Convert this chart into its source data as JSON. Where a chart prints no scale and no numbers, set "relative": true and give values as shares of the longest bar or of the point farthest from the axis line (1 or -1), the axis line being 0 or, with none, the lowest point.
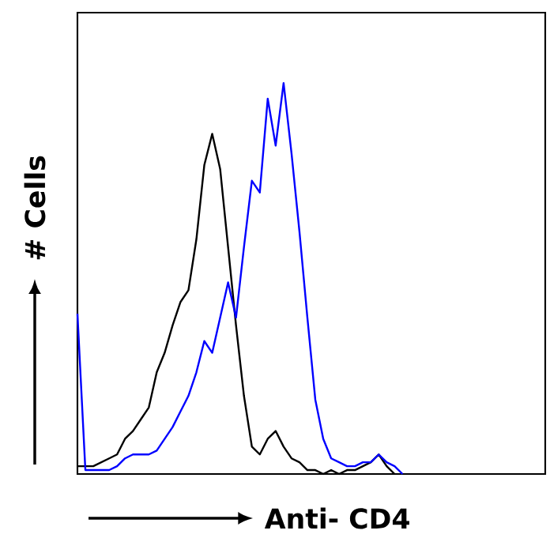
{
  "chart_data": {
    "type": "line",
    "relative": true,
    "xlabel": "Anti- CD4",
    "ylabel": "# Cells",
    "categories": [
      null,
      null,
      null,
      null,
      null,
      null,
      null,
      null,
      null,
      null,
      null,
      null,
      null,
      null,
      null,
      null,
      null,
      null,
      null,
      null,
      null,
      null,
      null,
      null,
      null,
      null,
      null,
      null,
      null,
      null,
      null,
      null,
      null,
      null,
      null,
      null,
      null,
      null,
      null,
      null,
      null,
      null,
      null,
      null,
      null,
      null,
      null,
      null,
      null,
      null,
      null,
      null,
      null,
      null,
      null,
      null,
      null,
      null,
      null,
      null
    ],
    "series": [
      {
        "color": "#000000",
        "values": [
          0.02,
          0.02,
          0.02,
          0.03,
          0.04,
          0.05,
          0.09,
          0.11,
          0.14,
          0.17,
          0.26,
          0.31,
          0.38,
          0.44,
          0.47,
          0.6,
          0.79,
          0.87,
          0.78,
          0.58,
          0.38,
          0.2,
          0.07,
          0.05,
          0.09,
          0.11,
          0.07,
          0.04,
          0.03,
          0.01,
          0.01,
          0.0,
          0.01,
          0.0,
          0.01,
          0.01,
          0.02,
          0.03,
          0.05,
          0.02,
          0.0,
          null,
          null,
          null,
          null,
          null,
          null,
          null,
          null,
          null,
          null,
          null,
          null,
          null,
          null,
          null,
          null,
          null,
          null,
          null
        ]
      },
      {
        "color": "#0000ff",
        "values": [
          0.41,
          0.01,
          0.01,
          0.01,
          0.01,
          0.02,
          0.04,
          0.05,
          0.05,
          0.05,
          0.06,
          0.09,
          0.12,
          0.16,
          0.2,
          0.26,
          0.34,
          0.31,
          0.4,
          0.49,
          0.4,
          0.58,
          0.75,
          0.72,
          0.96,
          0.84,
          1.0,
          0.82,
          0.62,
          0.4,
          0.19,
          0.09,
          0.04,
          0.03,
          0.02,
          0.02,
          0.03,
          0.03,
          0.05,
          0.03,
          0.02,
          0.0,
          null,
          null,
          null,
          null,
          null,
          null,
          null,
          null,
          null,
          null,
          null,
          null,
          null,
          null,
          null,
          null,
          null,
          null
        ]
      }
    ]
  }
}
